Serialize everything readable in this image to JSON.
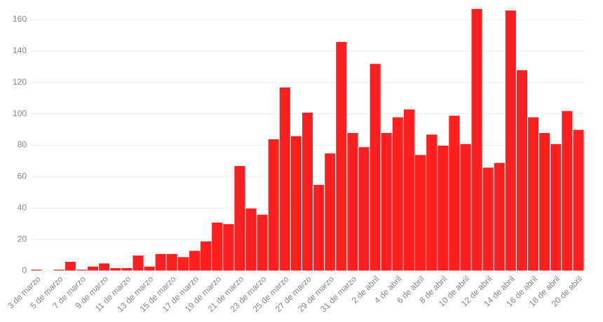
{
  "chart_data": {
    "type": "bar",
    "categories": [
      "3 de marzo",
      null,
      "5 de marzo",
      null,
      "7 de marzo",
      null,
      "9 de marzo",
      null,
      "11 de marzo",
      null,
      "13 de marzo",
      null,
      "15 de marzo",
      null,
      "17 de marzo",
      null,
      "19 de marzo",
      null,
      "21 de marzo",
      null,
      "23 de marzo",
      null,
      "25 de marzo",
      null,
      "27 de marzo",
      null,
      "29 de marzo",
      null,
      "31 de marzo",
      null,
      "2 de abril",
      null,
      "4 de abril",
      null,
      "6 de abril",
      null,
      "8 de abril",
      null,
      "10 de abril",
      null,
      "12 de abril",
      null,
      "14 de abril",
      null,
      "16 de abril",
      null,
      "18 de abril",
      null,
      "20 de abril"
    ],
    "values": [
      1,
      0,
      1,
      6,
      1,
      3,
      5,
      2,
      2,
      10,
      3,
      11,
      11,
      9,
      13,
      19,
      31,
      30,
      67,
      40,
      36,
      84,
      117,
      86,
      101,
      55,
      75,
      146,
      88,
      79,
      132,
      88,
      98,
      103,
      74,
      87,
      80,
      99,
      81,
      167,
      66,
      69,
      166,
      128,
      98,
      88,
      81,
      102,
      90
    ],
    "color": "#ff1f1f",
    "ylim": [
      0,
      168
    ],
    "yticks": [
      0,
      20,
      40,
      60,
      80,
      100,
      120,
      140,
      160
    ],
    "grid": true
  }
}
